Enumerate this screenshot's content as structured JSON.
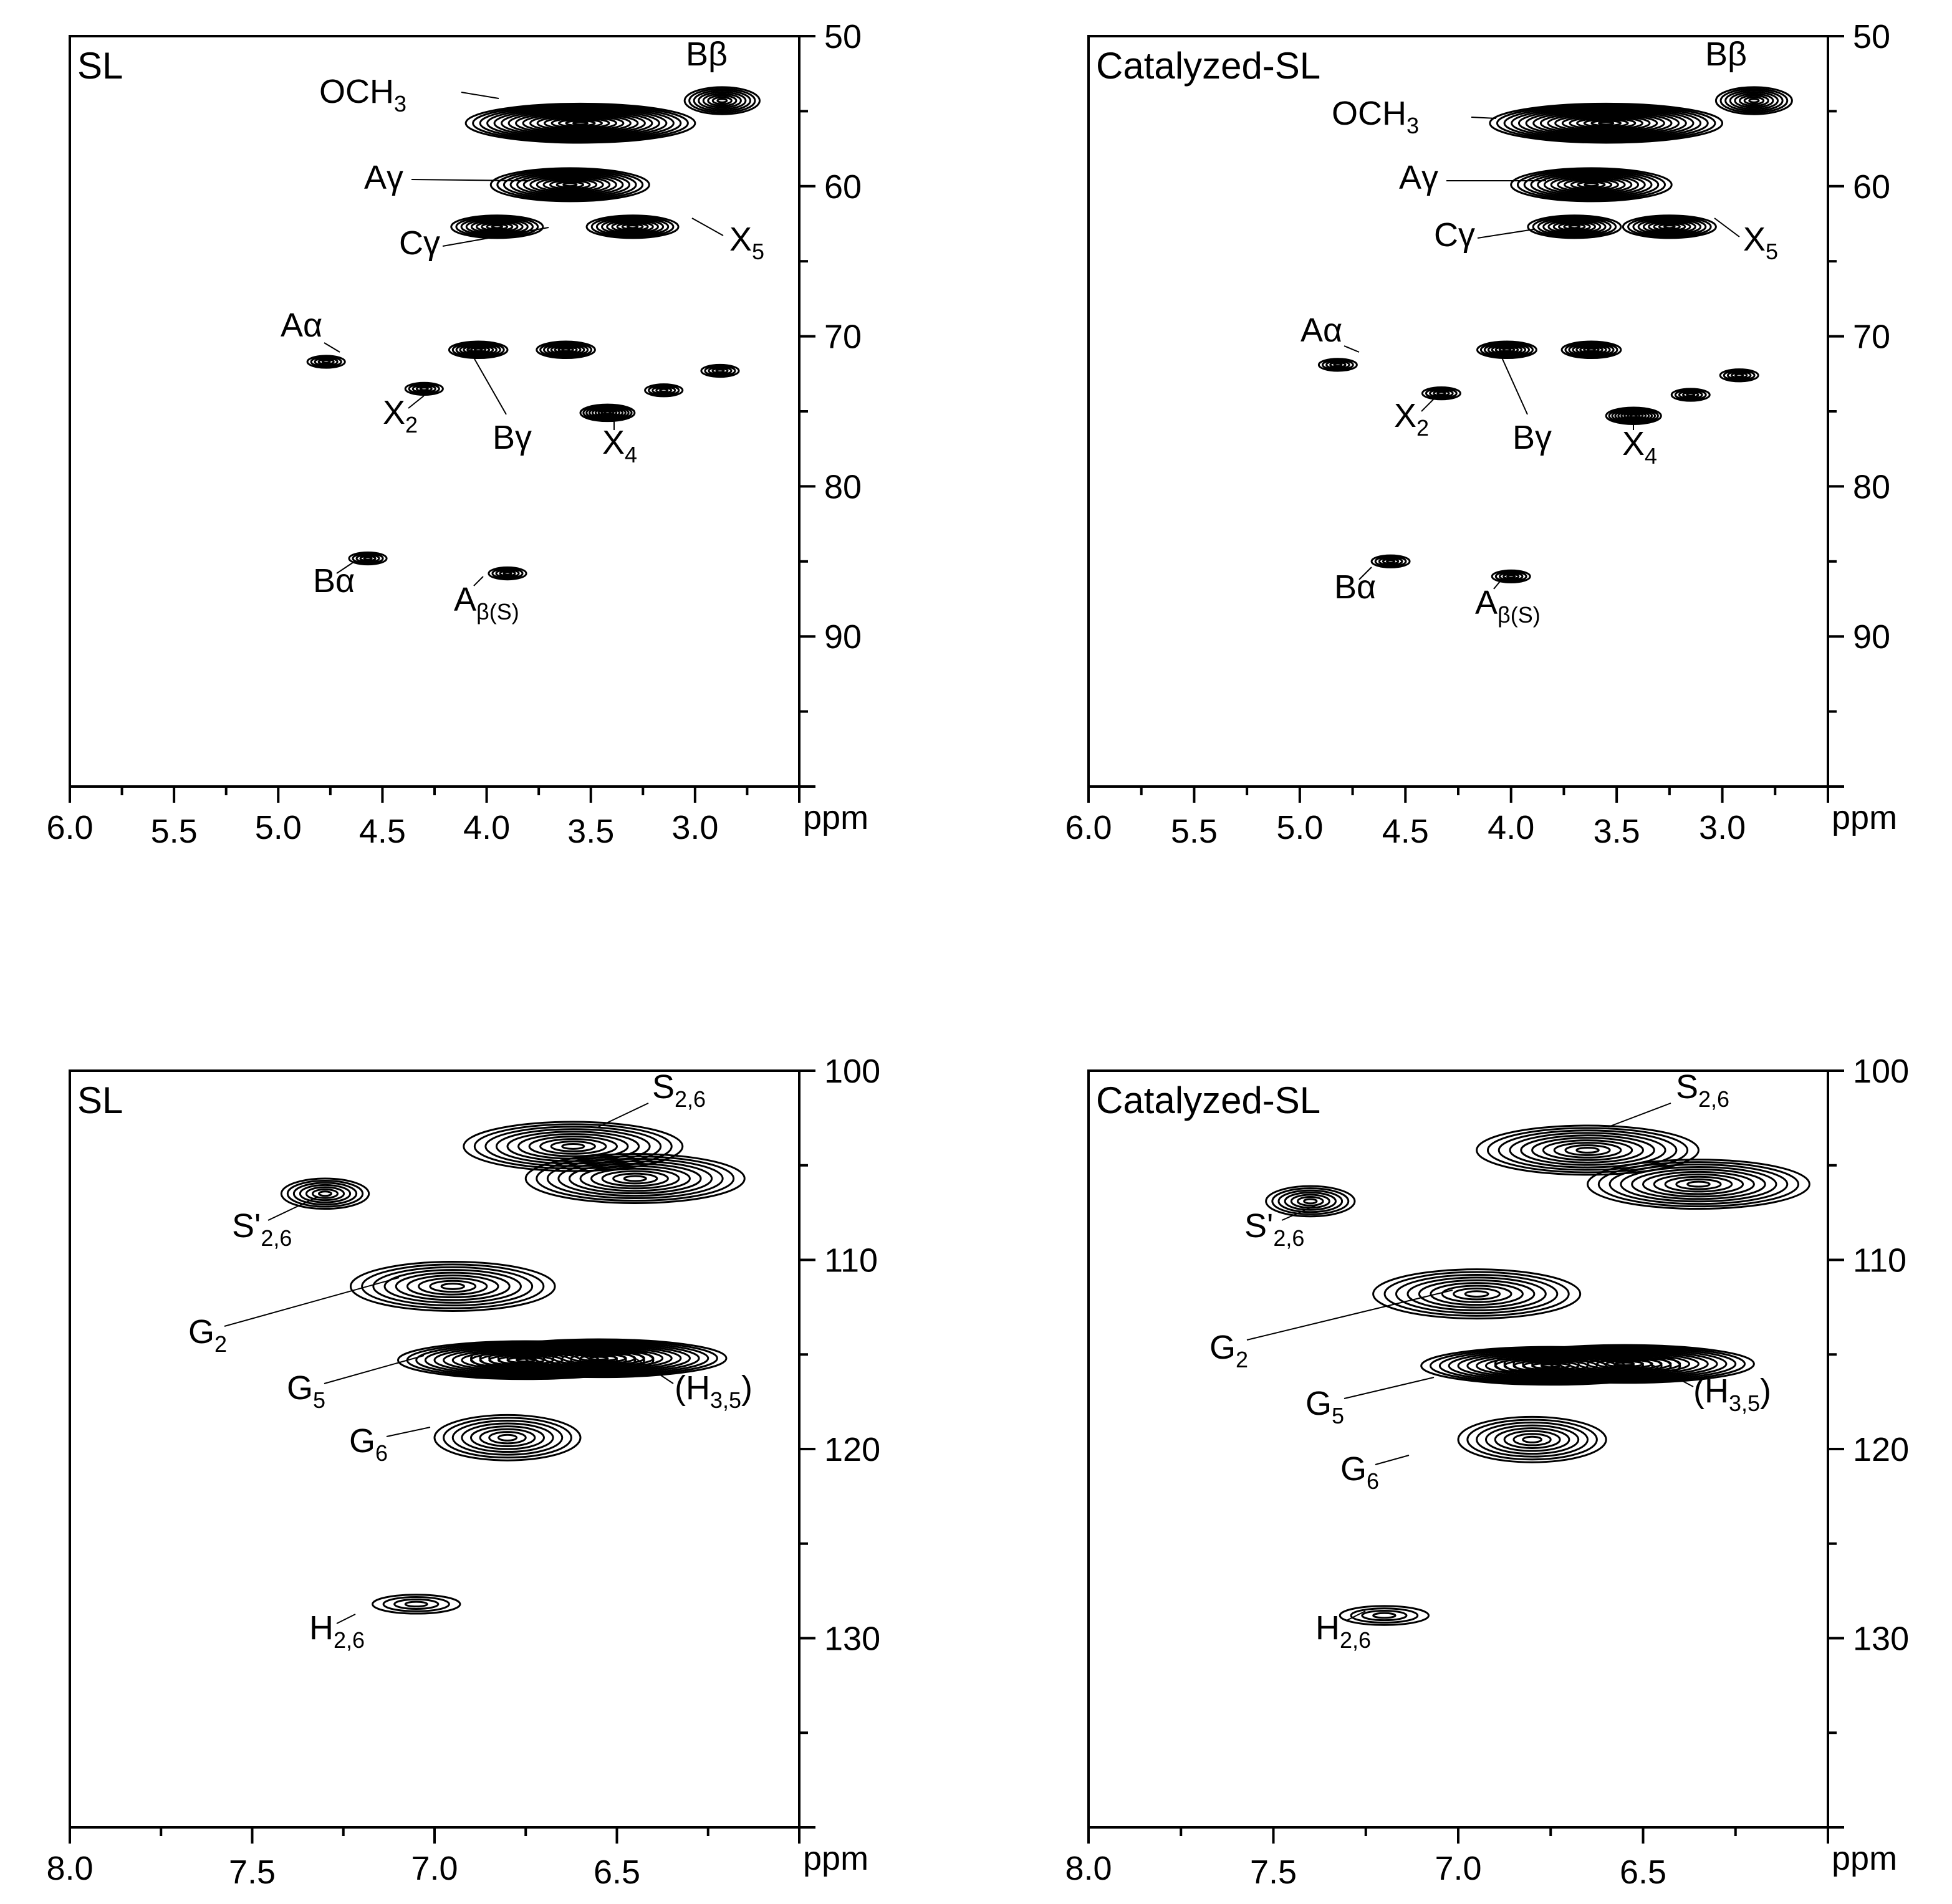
{
  "figure": {
    "panels": [
      {
        "id": "top-left",
        "title": "SL",
        "x_unit": "ppm",
        "xlim": [
          6.0,
          2.5
        ],
        "ylim": [
          50,
          100
        ],
        "x_ticks": [
          "6.0",
          "5.5",
          "5.0",
          "4.5",
          "4.0",
          "3.5",
          "3.0"
        ],
        "y_ticks": [
          "50",
          "60",
          "70",
          "80",
          "90"
        ],
        "annotations": [
          {
            "text": "Bβ",
            "sub": ""
          },
          {
            "text": "OCH",
            "sub": "3"
          },
          {
            "text": "Aγ",
            "sub": ""
          },
          {
            "text": "Cγ",
            "sub": ""
          },
          {
            "text": "X",
            "sub": "5"
          },
          {
            "text": "Aα",
            "sub": ""
          },
          {
            "text": "X",
            "sub": "2"
          },
          {
            "text": "Bγ",
            "sub": ""
          },
          {
            "text": "X",
            "sub": "4"
          },
          {
            "text": "Bα",
            "sub": ""
          },
          {
            "text": "A",
            "sub": "β(S)"
          }
        ]
      },
      {
        "id": "top-right",
        "title": "Catalyzed-SL",
        "x_unit": "ppm",
        "xlim": [
          6.0,
          2.5
        ],
        "ylim": [
          50,
          100
        ],
        "x_ticks": [
          "6.0",
          "5.5",
          "5.0",
          "4.5",
          "4.0",
          "3.5",
          "3.0"
        ],
        "y_ticks": [
          "50",
          "60",
          "70",
          "80",
          "90"
        ],
        "annotations": [
          {
            "text": "Bβ",
            "sub": ""
          },
          {
            "text": "OCH",
            "sub": "3"
          },
          {
            "text": "Aγ",
            "sub": ""
          },
          {
            "text": "Cγ",
            "sub": ""
          },
          {
            "text": "X",
            "sub": "5"
          },
          {
            "text": "Aα",
            "sub": ""
          },
          {
            "text": "X",
            "sub": "2"
          },
          {
            "text": "Bγ",
            "sub": ""
          },
          {
            "text": "X",
            "sub": "4"
          },
          {
            "text": "Bα",
            "sub": ""
          },
          {
            "text": "A",
            "sub": "β(S)"
          }
        ]
      },
      {
        "id": "bottom-left",
        "title": "SL",
        "x_unit": "ppm",
        "xlim": [
          8.0,
          6.0
        ],
        "ylim": [
          100,
          140
        ],
        "x_ticks": [
          "8.0",
          "7.5",
          "7.0",
          "6.5"
        ],
        "y_ticks": [
          "100",
          "110",
          "120",
          "130"
        ],
        "annotations": [
          {
            "text": "S",
            "sub": "2,6"
          },
          {
            "text": "S'",
            "sub": "2,6"
          },
          {
            "text": "G",
            "sub": "2"
          },
          {
            "text": "G",
            "sub": "5"
          },
          {
            "text": "(H",
            "sub": "3,5",
            "after": ")"
          },
          {
            "text": "G",
            "sub": "6"
          },
          {
            "text": "H",
            "sub": "2,6"
          }
        ]
      },
      {
        "id": "bottom-right",
        "title": "Catalyzed-SL",
        "x_unit": "ppm",
        "xlim": [
          8.0,
          6.0
        ],
        "ylim": [
          100,
          140
        ],
        "x_ticks": [
          "8.0",
          "7.5",
          "7.0",
          "6.5"
        ],
        "y_ticks": [
          "100",
          "110",
          "120",
          "130"
        ],
        "annotations": [
          {
            "text": "S",
            "sub": "2,6"
          },
          {
            "text": "S'",
            "sub": "2,6"
          },
          {
            "text": "G",
            "sub": "2"
          },
          {
            "text": "G",
            "sub": "5"
          },
          {
            "text": "(H",
            "sub": "3,5",
            "after": ")"
          },
          {
            "text": "G",
            "sub": "6"
          },
          {
            "text": "H",
            "sub": "2,6"
          }
        ]
      }
    ]
  },
  "chart_data": [
    {
      "type": "heatmap",
      "title": "SL",
      "x_unit": "ppm",
      "xlim": [
        6.0,
        2.5
      ],
      "ylim": [
        50,
        100
      ],
      "x_ticks": [
        6.0,
        5.5,
        5.0,
        4.5,
        4.0,
        3.5,
        3.0
      ],
      "y_ticks": [
        50,
        60,
        70,
        80,
        90
      ],
      "grid": false,
      "peaks": [
        {
          "label": "OCH3",
          "x": 3.55,
          "y": 55.8
        },
        {
          "label": "Bβ",
          "x": 2.87,
          "y": 54.3
        },
        {
          "label": "Aγ",
          "x": 3.6,
          "y": 59.9
        },
        {
          "label": "Cγ",
          "x": 3.95,
          "y": 62.7
        },
        {
          "label": "X5",
          "x": 3.3,
          "y": 62.7
        },
        {
          "label": "Aα",
          "x": 4.77,
          "y": 71.7
        },
        {
          "label": "X2",
          "x": 4.3,
          "y": 73.5
        },
        {
          "label": "Bγ",
          "x": 4.04,
          "y": 70.9
        },
        {
          "label": "Bγ",
          "x": 3.62,
          "y": 70.9
        },
        {
          "label": "",
          "x": 3.15,
          "y": 73.6
        },
        {
          "label": "",
          "x": 2.88,
          "y": 72.3
        },
        {
          "label": "X4",
          "x": 3.42,
          "y": 75.1
        },
        {
          "label": "Bα",
          "x": 4.57,
          "y": 84.8
        },
        {
          "label": "Aβ(S)",
          "x": 3.9,
          "y": 85.8
        }
      ]
    },
    {
      "type": "heatmap",
      "title": "Catalyzed-SL",
      "x_unit": "ppm",
      "xlim": [
        6.0,
        2.5
      ],
      "ylim": [
        50,
        100
      ],
      "x_ticks": [
        6.0,
        5.5,
        5.0,
        4.5,
        4.0,
        3.5,
        3.0
      ],
      "y_ticks": [
        50,
        60,
        70,
        80,
        90
      ],
      "grid": false,
      "peaks": [
        {
          "label": "OCH3",
          "x": 3.55,
          "y": 55.8
        },
        {
          "label": "Bβ",
          "x": 2.85,
          "y": 54.3
        },
        {
          "label": "Aγ",
          "x": 3.62,
          "y": 59.9
        },
        {
          "label": "Cγ",
          "x": 3.7,
          "y": 62.7
        },
        {
          "label": "X5",
          "x": 3.25,
          "y": 62.7
        },
        {
          "label": "Aα",
          "x": 4.82,
          "y": 71.9
        },
        {
          "label": "X2",
          "x": 4.33,
          "y": 73.8
        },
        {
          "label": "Bγ",
          "x": 4.02,
          "y": 70.9
        },
        {
          "label": "Bγ",
          "x": 3.62,
          "y": 70.9
        },
        {
          "label": "",
          "x": 3.15,
          "y": 73.9
        },
        {
          "label": "",
          "x": 2.92,
          "y": 72.6
        },
        {
          "label": "X4",
          "x": 3.42,
          "y": 75.3
        },
        {
          "label": "Bα",
          "x": 4.57,
          "y": 85.0
        },
        {
          "label": "Aβ(S)",
          "x": 4.0,
          "y": 86.0
        }
      ]
    },
    {
      "type": "heatmap",
      "title": "SL",
      "x_unit": "ppm",
      "xlim": [
        8.0,
        6.0
      ],
      "ylim": [
        100,
        140
      ],
      "x_ticks": [
        8.0,
        7.5,
        7.0,
        6.5
      ],
      "y_ticks": [
        100,
        110,
        120,
        130
      ],
      "grid": false,
      "peaks": [
        {
          "label": "S2,6",
          "x": 6.62,
          "y": 104.0
        },
        {
          "label": "S2,6",
          "x": 6.45,
          "y": 105.7
        },
        {
          "label": "S'2,6",
          "x": 7.3,
          "y": 106.5
        },
        {
          "label": "G2",
          "x": 6.95,
          "y": 111.4
        },
        {
          "label": "G5",
          "x": 6.75,
          "y": 115.3
        },
        {
          "label": "(H3,5)",
          "x": 6.55,
          "y": 115.2
        },
        {
          "label": "G6",
          "x": 6.8,
          "y": 119.4
        },
        {
          "label": "H2,6",
          "x": 7.05,
          "y": 128.2
        }
      ]
    },
    {
      "type": "heatmap",
      "title": "Catalyzed-SL",
      "x_unit": "ppm",
      "xlim": [
        8.0,
        6.0
      ],
      "ylim": [
        100,
        140
      ],
      "x_ticks": [
        8.0,
        7.5,
        7.0,
        6.5
      ],
      "y_ticks": [
        100,
        110,
        120,
        130
      ],
      "grid": false,
      "peaks": [
        {
          "label": "S2,6",
          "x": 6.65,
          "y": 104.2
        },
        {
          "label": "S2,6",
          "x": 6.35,
          "y": 106.0
        },
        {
          "label": "S'2,6",
          "x": 7.4,
          "y": 106.9
        },
        {
          "label": "G2",
          "x": 6.95,
          "y": 111.8
        },
        {
          "label": "G5",
          "x": 6.75,
          "y": 115.6
        },
        {
          "label": "(H3,5)",
          "x": 6.55,
          "y": 115.5
        },
        {
          "label": "G6",
          "x": 6.8,
          "y": 119.5
        },
        {
          "label": "H2,6",
          "x": 7.2,
          "y": 128.8
        }
      ]
    }
  ]
}
